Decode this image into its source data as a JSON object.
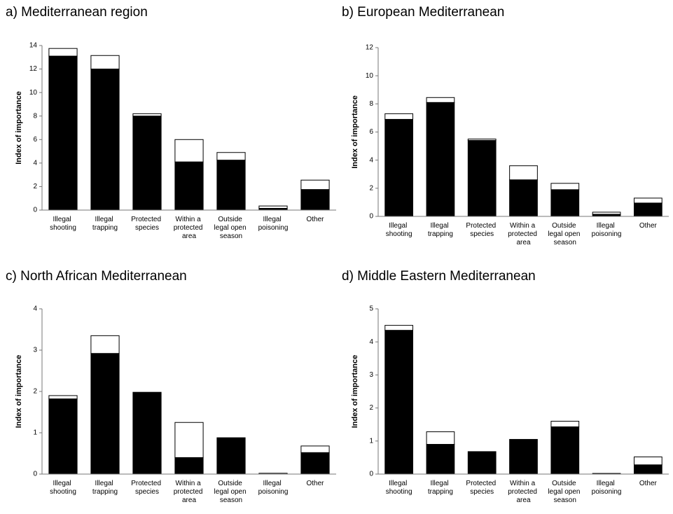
{
  "chart_data": [
    {
      "type": "bar",
      "stacked": true,
      "title": "a) Mediterranean region",
      "y_label": "Index of importance",
      "categories": [
        "Illegal shooting",
        "Illegal trapping",
        "Protected species",
        "Within a protected area",
        "Outside legal open season",
        "Illegal poisoning",
        "Other"
      ],
      "series": [
        {
          "color": "#000000",
          "values": [
            13.1,
            12.0,
            8.0,
            4.1,
            4.25,
            0.15,
            1.75
          ]
        },
        {
          "color": "#ffffff",
          "values": [
            0.65,
            1.15,
            0.2,
            1.9,
            0.65,
            0.2,
            0.8
          ]
        }
      ],
      "ylim": [
        0,
        14
      ],
      "yticks": [
        0,
        2,
        4,
        6,
        8,
        10,
        12,
        14
      ]
    },
    {
      "type": "bar",
      "stacked": true,
      "title": "b) European Mediterranean",
      "y_label": "Index of importance",
      "categories": [
        "Illegal shooting",
        "Illegal trapping",
        "Protected species",
        "Within a protected area",
        "Outside legal open season",
        "Illegal poisoning",
        "Other"
      ],
      "series": [
        {
          "color": "#000000",
          "values": [
            6.9,
            8.1,
            5.4,
            2.6,
            1.9,
            0.15,
            0.95
          ]
        },
        {
          "color": "#ffffff",
          "values": [
            0.4,
            0.35,
            0.1,
            1.0,
            0.45,
            0.15,
            0.35
          ]
        }
      ],
      "ylim": [
        0,
        12
      ],
      "yticks": [
        0,
        2,
        4,
        6,
        8,
        10,
        12
      ]
    },
    {
      "type": "bar",
      "stacked": true,
      "title": "c) North African Mediterranean",
      "y_label": "Index of importance",
      "categories": [
        "Illegal shooting",
        "Illegal trapping",
        "Protected species",
        "Within a protected area",
        "Outside legal open season",
        "Illegal poisoning",
        "Other"
      ],
      "series": [
        {
          "color": "#000000",
          "values": [
            1.82,
            2.92,
            1.98,
            0.4,
            0.88,
            0,
            0.52
          ]
        },
        {
          "color": "#ffffff",
          "values": [
            0.08,
            0.43,
            0,
            0.85,
            0,
            0.02,
            0.16
          ]
        }
      ],
      "ylim": [
        0,
        4
      ],
      "yticks": [
        0,
        1,
        2,
        3,
        4
      ]
    },
    {
      "type": "bar",
      "stacked": true,
      "title": "d) Middle Eastern Mediterranean",
      "y_label": "Index of importance",
      "categories": [
        "Illegal shooting",
        "Illegal trapping",
        "Protected species",
        "Within a protected area",
        "Outside legal open season",
        "Illegal poisoning",
        "Other"
      ],
      "series": [
        {
          "color": "#000000",
          "values": [
            4.35,
            0.9,
            0.68,
            1.05,
            1.43,
            0,
            0.28
          ]
        },
        {
          "color": "#ffffff",
          "values": [
            0.15,
            0.38,
            0,
            0,
            0.17,
            0.02,
            0.24
          ]
        }
      ],
      "ylim": [
        0,
        5
      ],
      "yticks": [
        0,
        1,
        2,
        3,
        4,
        5
      ]
    }
  ]
}
